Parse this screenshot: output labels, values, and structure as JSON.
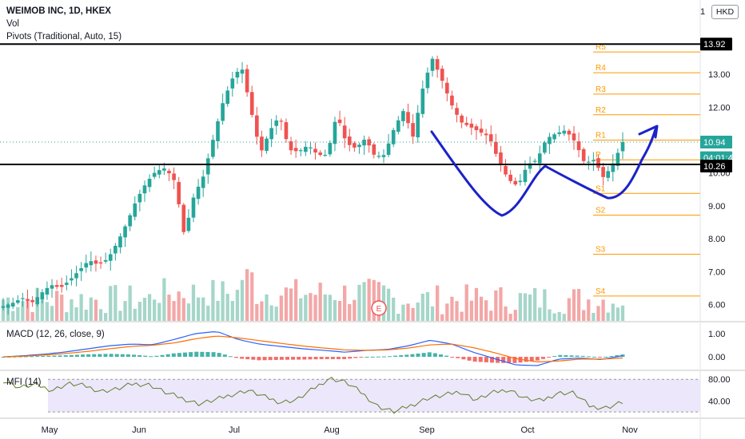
{
  "chart_data": {
    "type": "candlestick",
    "symbol_title": "WEIMOB INC, 1D, HKEX",
    "indicators": [
      "Vol",
      "Pivots (Traditional, Auto, 15)"
    ],
    "currency": "HKD",
    "price_axis": {
      "ticks": [
        "13.00",
        "12.00",
        "11.00",
        "10.00",
        "9.00",
        "8.00",
        "7.00",
        "6.00"
      ],
      "range": [
        5.6,
        14.4
      ]
    },
    "x_axis": {
      "ticks": [
        "May",
        "Jun",
        "Jul",
        "Aug",
        "Sep",
        "Oct",
        "Nov"
      ]
    },
    "price_labels": {
      "resistance": "13.92",
      "last": "10.94",
      "countdown": "04:01:46",
      "support": "10.26"
    },
    "horizontal_lines": [
      13.92,
      10.26
    ],
    "last_price": 10.94,
    "pivot_levels": [
      {
        "name": "R5",
        "value": 13.68
      },
      {
        "name": "R4",
        "value": 13.05
      },
      {
        "name": "R3",
        "value": 12.4
      },
      {
        "name": "R2",
        "value": 11.77
      },
      {
        "name": "R1",
        "value": 11.0
      },
      {
        "name": "P",
        "value": 10.4
      },
      {
        "name": "S1",
        "value": 9.38
      },
      {
        "name": "S2",
        "value": 8.72
      },
      {
        "name": "S3",
        "value": 7.53
      },
      {
        "name": "S4",
        "value": 6.26
      }
    ],
    "price_path": [
      5.95,
      6.05,
      6.2,
      6.05,
      6.35,
      6.6,
      6.5,
      6.75,
      7.05,
      7.35,
      7.2,
      7.4,
      7.9,
      8.5,
      9.2,
      9.7,
      10.05,
      10.15,
      9.75,
      8.1,
      9.3,
      9.9,
      11.0,
      12.1,
      12.85,
      13.25,
      11.9,
      10.6,
      11.3,
      11.75,
      10.7,
      10.65,
      10.85,
      10.55,
      10.55,
      11.8,
      10.9,
      10.75,
      11.05,
      10.5,
      10.55,
      11.35,
      11.9,
      11.1,
      12.55,
      13.5,
      12.85,
      12.1,
      11.55,
      11.4,
      11.25,
      11.1,
      10.35,
      9.8,
      9.6,
      10.25,
      10.4,
      11.05,
      11.2,
      11.3,
      10.95,
      10.3,
      10.4,
      9.85,
      10.3,
      10.94
    ],
    "volume_note": "volume histogram",
    "macd": {
      "label": "MACD (12, 26, close, 9)",
      "ticks": [
        "1.00",
        "0.00"
      ],
      "range": [
        -0.55,
        1.45
      ],
      "macd_path": [
        0.0,
        0.05,
        0.12,
        0.22,
        0.35,
        0.48,
        0.55,
        0.52,
        0.75,
        1.0,
        1.1,
        0.75,
        0.55,
        0.45,
        0.35,
        0.28,
        0.2,
        0.28,
        0.32,
        0.48,
        0.72,
        0.55,
        0.2,
        -0.08,
        -0.35,
        -0.38,
        -0.1,
        -0.05,
        -0.12,
        0.05
      ],
      "signal_path": [
        0.0,
        0.03,
        0.08,
        0.15,
        0.24,
        0.35,
        0.45,
        0.5,
        0.6,
        0.78,
        0.9,
        0.82,
        0.7,
        0.58,
        0.47,
        0.38,
        0.3,
        0.28,
        0.3,
        0.38,
        0.52,
        0.55,
        0.4,
        0.18,
        -0.08,
        -0.22,
        -0.18,
        -0.1,
        -0.1,
        -0.05
      ]
    },
    "mfi": {
      "label": "MFI (14)",
      "ticks": [
        "80.00",
        "40.00"
      ],
      "range": [
        10,
        95
      ],
      "band": [
        20,
        80
      ],
      "path": [
        78,
        65,
        70,
        60,
        72,
        68,
        58,
        62,
        72,
        70,
        55,
        45,
        35,
        42,
        52,
        60,
        48,
        38,
        42,
        62,
        82,
        75,
        55,
        30,
        20,
        32,
        45,
        50,
        58,
        42,
        55,
        62,
        45,
        40,
        55,
        55,
        30,
        28,
        38
      ]
    }
  },
  "badge": {
    "earnings_letter": "E"
  }
}
